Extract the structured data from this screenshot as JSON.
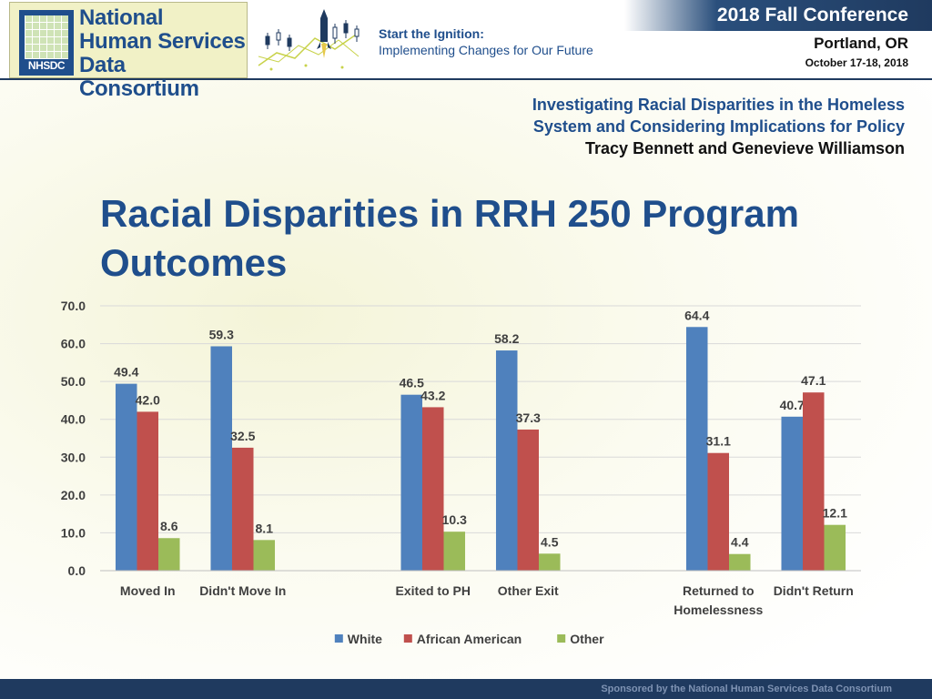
{
  "header": {
    "logo": {
      "line1": "National",
      "line2": "Human Services",
      "line3": "Data Consortium",
      "abbr": "NHSDC"
    },
    "tagline": {
      "line1": "Start the Ignition:",
      "line2": "Implementing Changes for Our Future"
    },
    "conference": "2018 Fall Conference",
    "city": "Portland, OR",
    "dates": "October 17-18, 2018"
  },
  "session": {
    "title_line1": "Investigating Racial Disparities in the Homeless",
    "title_line2": "System and Considering Implications for Policy",
    "authors": "Tracy Bennett and Genevieve Williamson"
  },
  "slide": {
    "title_line1": "Racial Disparities in RRH 250 Program",
    "title_line2": "Outcomes"
  },
  "footer": {
    "text": "Sponsored by the National Human Services Data Consortium"
  },
  "colors": {
    "white_series": "#4f81bd",
    "aa_series": "#c0504d",
    "other_series": "#9bbb59",
    "brand": "#1f4e8c"
  },
  "chart_data": {
    "type": "bar",
    "title": "",
    "xlabel": "",
    "ylabel": "",
    "ylim": [
      0,
      70
    ],
    "yticks": [
      "0.0",
      "10.0",
      "20.0",
      "30.0",
      "40.0",
      "50.0",
      "60.0",
      "70.0"
    ],
    "grid": true,
    "legend": "bottom",
    "categories": [
      "Moved In",
      "Didn't Move In",
      "Exited to PH",
      "Other Exit",
      "Returned to Homelessness",
      "Didn't Return"
    ],
    "category_groups": [
      [
        0,
        1
      ],
      [
        2,
        3
      ],
      [
        4,
        5
      ]
    ],
    "series": [
      {
        "name": "White",
        "values": [
          49.4,
          59.3,
          46.5,
          58.2,
          64.4,
          40.7
        ]
      },
      {
        "name": "African American",
        "values": [
          42.0,
          32.5,
          43.2,
          37.3,
          31.1,
          47.1
        ]
      },
      {
        "name": "Other",
        "values": [
          8.6,
          8.1,
          10.3,
          4.5,
          4.4,
          12.1
        ]
      }
    ],
    "data_labels": [
      [
        "49.4",
        "59.3",
        "46.5",
        "58.2",
        "64.4",
        "40.7"
      ],
      [
        "42.0",
        "32.5",
        "43.2",
        "37.3",
        "31.1",
        "47.1"
      ],
      [
        "8.6",
        "8.1",
        "10.3",
        "4.5",
        "4.4",
        "12.1"
      ]
    ]
  }
}
